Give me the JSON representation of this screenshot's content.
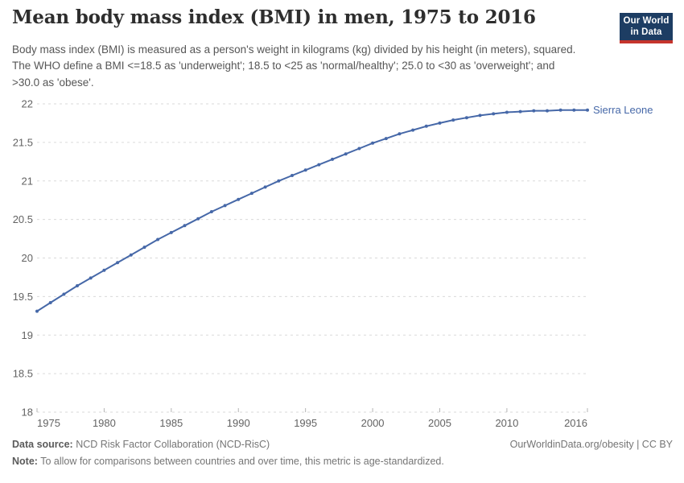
{
  "header": {
    "title": "Mean body mass index (BMI) in men, 1975 to 2016",
    "subtitle": "Body mass index (BMI) is measured as a person's weight in kilograms (kg) divided by his height (in meters), squared. The WHO define a BMI <=18.5 as 'underweight'; 18.5 to <25 as 'normal/healthy'; 25.0 to <30 as 'overweight'; and >30.0 as 'obese'.",
    "logo": {
      "line1": "Our World",
      "line2": "in Data",
      "bg_color": "#1d3d63",
      "accent_color": "#c5342c"
    }
  },
  "chart_data": {
    "type": "line",
    "title": "Mean body mass index (BMI) in men, 1975 to 2016",
    "xlabel": "",
    "ylabel": "",
    "xlim": [
      1975,
      2016
    ],
    "ylim": [
      18,
      22
    ],
    "xticks": [
      1975,
      1980,
      1985,
      1990,
      1995,
      2000,
      2005,
      2010,
      2016
    ],
    "yticks": [
      18,
      18.5,
      19,
      19.5,
      20,
      20.5,
      21,
      21.5,
      22
    ],
    "grid": "horizontal-dashed",
    "grid_color": "#dadada",
    "tick_label_color": "#636363",
    "legend_position": "end-of-line-label",
    "series": [
      {
        "name": "Sierra Leone",
        "color": "#4668a8",
        "x": [
          1975,
          1976,
          1977,
          1978,
          1979,
          1980,
          1981,
          1982,
          1983,
          1984,
          1985,
          1986,
          1987,
          1988,
          1989,
          1990,
          1991,
          1992,
          1993,
          1994,
          1995,
          1996,
          1997,
          1998,
          1999,
          2000,
          2001,
          2002,
          2003,
          2004,
          2005,
          2006,
          2007,
          2008,
          2009,
          2010,
          2011,
          2012,
          2013,
          2014,
          2015,
          2016
        ],
        "values": [
          19.31,
          19.42,
          19.53,
          19.64,
          19.74,
          19.84,
          19.94,
          20.04,
          20.14,
          20.24,
          20.33,
          20.42,
          20.51,
          20.6,
          20.68,
          20.76,
          20.84,
          20.92,
          21.0,
          21.07,
          21.14,
          21.21,
          21.28,
          21.35,
          21.42,
          21.49,
          21.55,
          21.61,
          21.66,
          21.71,
          21.75,
          21.79,
          21.82,
          21.85,
          21.87,
          21.89,
          21.9,
          21.91,
          21.91,
          21.92,
          21.92,
          21.92
        ]
      }
    ]
  },
  "footer": {
    "datasource_label": "Data source:",
    "datasource_value": " NCD Risk Factor Collaboration (NCD-RisC)",
    "note_label": "Note:",
    "note_value": " To allow for comparisons between countries and over time, this metric is age-standardized.",
    "link": "OurWorldinData.org/obesity | CC BY"
  }
}
